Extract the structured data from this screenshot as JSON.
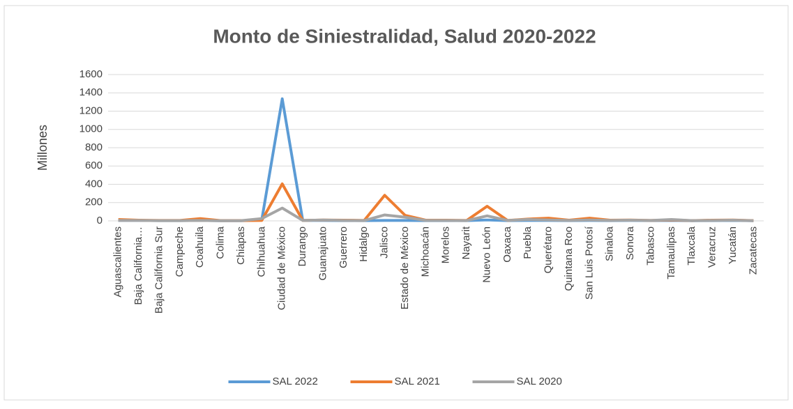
{
  "chart_data": {
    "type": "line",
    "title": "Monto de Siniestralidad, Salud 2020-2022",
    "y_label": "Millones",
    "categories": [
      "Aguascalientes",
      "Baja California…",
      "Baja California Sur",
      "Campeche",
      "Coahuila",
      "Colima",
      "Chiapas",
      "Chihuahua",
      "Ciudad de México",
      "Durango",
      "Guanajuato",
      "Guerrero",
      "Hidalgo",
      "Jalisco",
      "Estado de México",
      "Michoacán",
      "Morelos",
      "Nayarit",
      "Nuevo León",
      "Oaxaca",
      "Puebla",
      "Querétaro",
      "Quintana Roo",
      "San Luis Potosí",
      "Sinaloa",
      "Sonora",
      "Tabasco",
      "Tamaulipas",
      "Tlaxcala",
      "Veracruz",
      "Yucatán",
      "Zacatecas"
    ],
    "series": [
      {
        "name": "SAL 2022",
        "color": "#5b9bd5",
        "values": [
          5,
          5,
          3,
          3,
          5,
          2,
          2,
          10,
          1335,
          5,
          5,
          3,
          3,
          5,
          5,
          3,
          3,
          3,
          10,
          3,
          5,
          5,
          3,
          5,
          3,
          5,
          3,
          5,
          2,
          3,
          5,
          2
        ]
      },
      {
        "name": "SAL 2021",
        "color": "#ed7d31",
        "values": [
          15,
          8,
          5,
          5,
          25,
          3,
          3,
          5,
          405,
          5,
          10,
          8,
          5,
          280,
          60,
          8,
          8,
          5,
          160,
          5,
          20,
          30,
          8,
          30,
          8,
          10,
          5,
          10,
          3,
          8,
          10,
          3
        ]
      },
      {
        "name": "SAL 2020",
        "color": "#a5a5a5",
        "values": [
          5,
          5,
          3,
          3,
          5,
          2,
          3,
          25,
          140,
          5,
          10,
          5,
          3,
          65,
          40,
          5,
          5,
          3,
          55,
          5,
          15,
          10,
          5,
          10,
          5,
          8,
          5,
          15,
          3,
          5,
          8,
          2
        ]
      }
    ],
    "ylim": [
      0,
      1600
    ],
    "yticks": [
      0,
      200,
      400,
      600,
      800,
      1000,
      1200,
      1400,
      1600
    ],
    "grid": true,
    "legend": "bottom"
  }
}
